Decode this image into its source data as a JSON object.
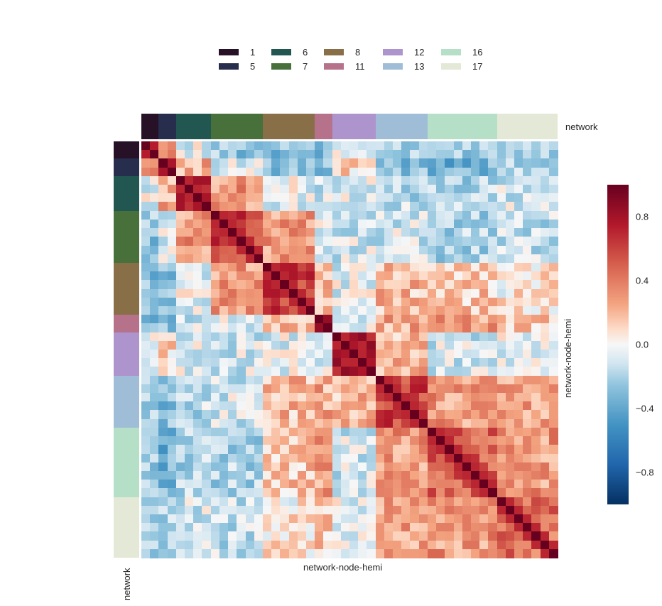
{
  "chart_data": {
    "type": "heatmap",
    "title": "",
    "xlabel": "network-node-hemi",
    "ylabel": "network-node-hemi",
    "row_colors_label": "network",
    "col_colors_label": "network",
    "n": 48,
    "groups": [
      {
        "name": "1",
        "size": 2,
        "color": "#261126"
      },
      {
        "name": "5",
        "size": 2,
        "color": "#262d4d"
      },
      {
        "name": "6",
        "size": 4,
        "color": "#225751"
      },
      {
        "name": "7",
        "size": 6,
        "color": "#47703a"
      },
      {
        "name": "8",
        "size": 6,
        "color": "#896f48"
      },
      {
        "name": "11",
        "size": 2,
        "color": "#b6728b"
      },
      {
        "name": "12",
        "size": 5,
        "color": "#ae94cc"
      },
      {
        "name": "13",
        "size": 6,
        "color": "#9fbdd6"
      },
      {
        "name": "16",
        "size": 8,
        "color": "#b5dfc7"
      },
      {
        "name": "17",
        "size": 7,
        "color": "#e3e9d6"
      }
    ],
    "block_means": [
      [
        0.85,
        0.45,
        -0.05,
        -0.25,
        -0.3,
        -0.3,
        -0.05,
        -0.25,
        -0.2,
        -0.15
      ],
      [
        0.45,
        0.85,
        0.25,
        -0.1,
        -0.3,
        -0.25,
        0.1,
        -0.3,
        -0.35,
        -0.2
      ],
      [
        -0.05,
        0.25,
        0.7,
        0.3,
        -0.05,
        -0.1,
        -0.05,
        -0.15,
        -0.2,
        -0.1
      ],
      [
        -0.25,
        -0.1,
        0.3,
        0.6,
        0.3,
        -0.05,
        -0.1,
        -0.1,
        -0.2,
        -0.15
      ],
      [
        -0.3,
        -0.3,
        -0.05,
        0.3,
        0.6,
        0.2,
        -0.05,
        0.2,
        0.15,
        0.05
      ],
      [
        -0.3,
        -0.25,
        -0.1,
        -0.05,
        0.2,
        0.8,
        -0.05,
        0.25,
        0.3,
        0.15
      ],
      [
        -0.05,
        0.1,
        -0.05,
        -0.1,
        -0.05,
        -0.05,
        0.7,
        0.2,
        -0.1,
        -0.05
      ],
      [
        -0.25,
        -0.3,
        -0.15,
        -0.1,
        0.2,
        0.25,
        0.2,
        0.6,
        0.3,
        0.25
      ],
      [
        -0.2,
        -0.35,
        -0.2,
        -0.2,
        0.15,
        0.3,
        -0.1,
        0.3,
        0.5,
        0.3
      ],
      [
        -0.15,
        -0.2,
        -0.1,
        -0.15,
        0.05,
        0.15,
        -0.05,
        0.25,
        0.3,
        0.45
      ]
    ],
    "diagonal": 1.0,
    "colormap": "RdBu_r",
    "vmin": -1.0,
    "vmax": 1.0,
    "colorbar_ticks": [
      "0.8",
      "0.4",
      "0.0",
      "−0.4",
      "−0.8"
    ],
    "colorbar_tick_values": [
      0.8,
      0.4,
      0.0,
      -0.4,
      -0.8
    ]
  },
  "legend": {
    "items": [
      {
        "label": "1",
        "color": "#261126"
      },
      {
        "label": "5",
        "color": "#262d4d"
      },
      {
        "label": "6",
        "color": "#225751"
      },
      {
        "label": "7",
        "color": "#47703a"
      },
      {
        "label": "8",
        "color": "#896f48"
      },
      {
        "label": "11",
        "color": "#b6728b"
      },
      {
        "label": "12",
        "color": "#ae94cc"
      },
      {
        "label": "13",
        "color": "#9fbdd6"
      },
      {
        "label": "16",
        "color": "#b5dfc7"
      },
      {
        "label": "17",
        "color": "#e3e9d6"
      }
    ]
  }
}
